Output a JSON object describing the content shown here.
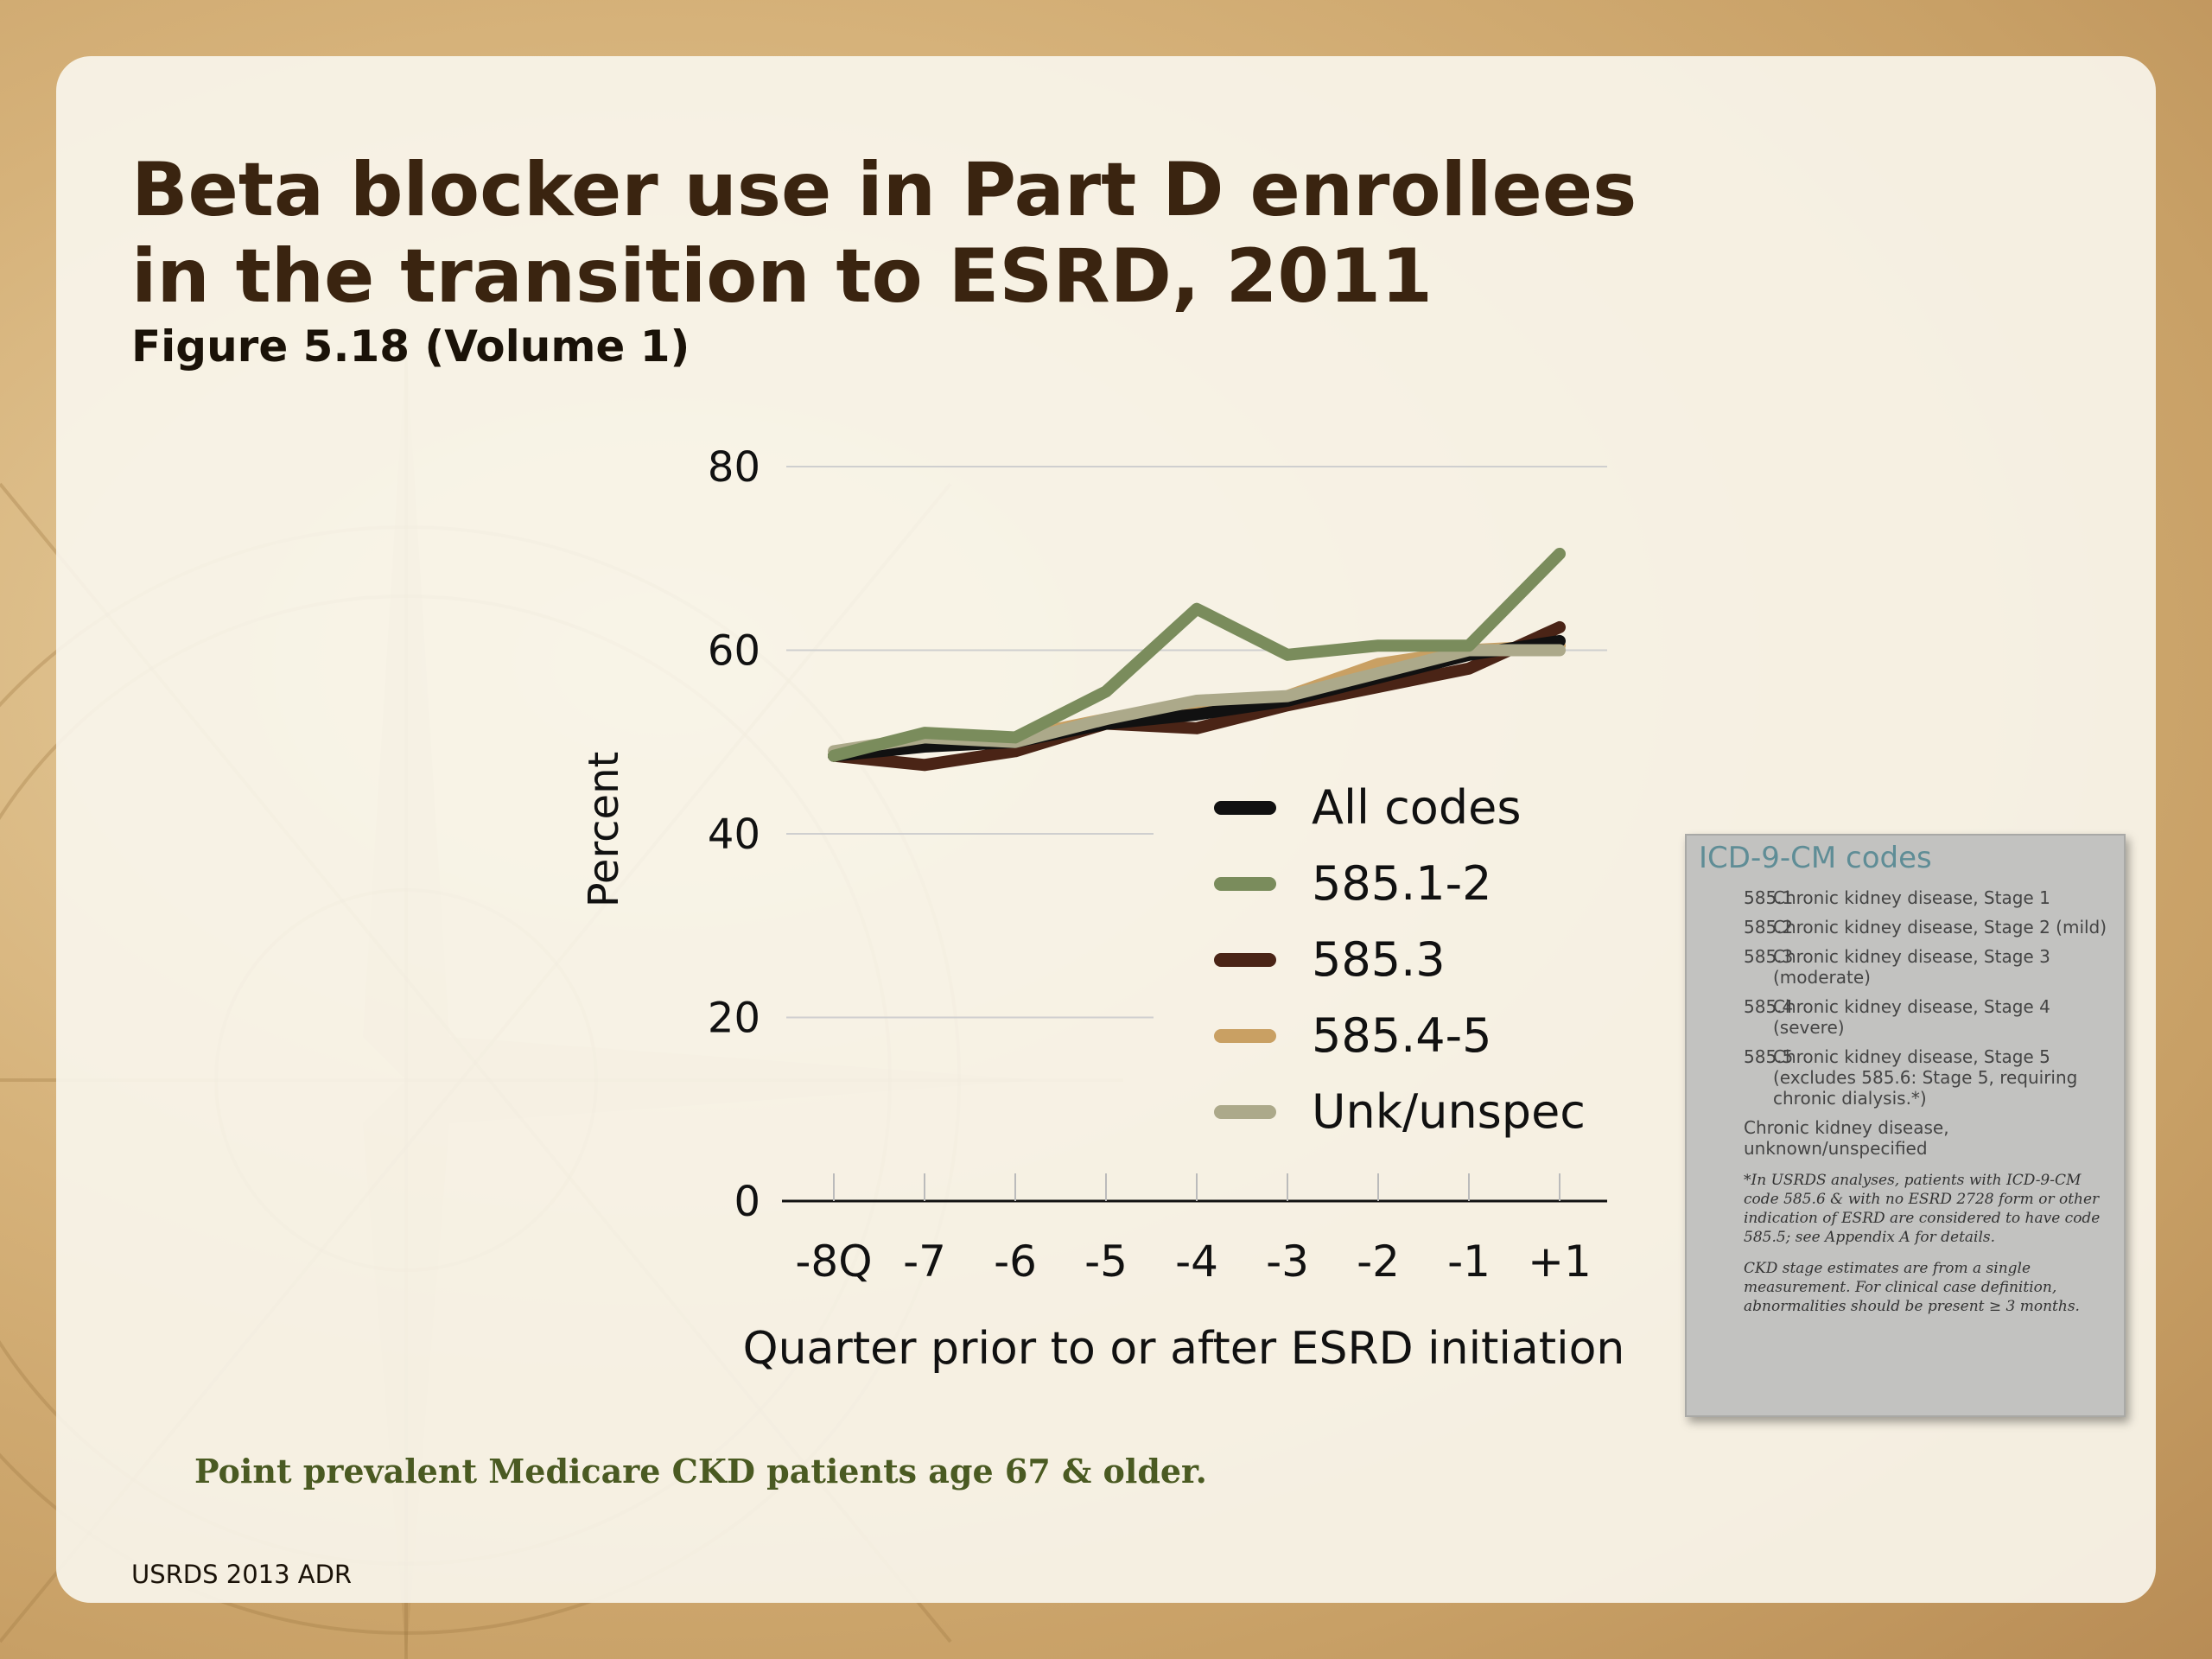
{
  "slide": {
    "title_line1": "Beta blocker use in Part D enrollees",
    "title_line2": "in the transition to ESRD, 2011",
    "subtitle": "Figure 5.18 (Volume 1)",
    "caption": "Point prevalent Medicare CKD patients age 67 & older.",
    "footer": "USRDS 2013 ADR"
  },
  "chart_data": {
    "type": "line",
    "title": "Beta blocker use in Part D enrollees in the transition to ESRD, 2011",
    "xlabel": "Quarter prior to or after ESRD initiation",
    "ylabel": "Percent",
    "categories": [
      "-8Q",
      "-7",
      "-6",
      "-5",
      "-4",
      "-3",
      "-2",
      "-1",
      "+1"
    ],
    "ylim": [
      0,
      80
    ],
    "yticks": [
      0,
      20,
      40,
      60,
      80
    ],
    "grid": true,
    "legend_position": "inside-bottom-right",
    "series": [
      {
        "name": "All codes",
        "color": "#111111",
        "values": [
          48.5,
          49.5,
          50,
          52,
          53,
          54.5,
          57,
          59.5,
          61
        ]
      },
      {
        "name": "585.1-2",
        "color": "#7a8c5c",
        "values": [
          48.5,
          51,
          50.5,
          55.5,
          64.5,
          59.5,
          60.5,
          60.5,
          70.5
        ]
      },
      {
        "name": "585.3",
        "color": "#4a2416",
        "values": [
          48.5,
          47.5,
          49,
          52,
          51.5,
          54,
          56,
          58,
          62.5
        ]
      },
      {
        "name": "585.4-5",
        "color": "#c9a063",
        "values": [
          48.5,
          50,
          50.5,
          52.5,
          53.5,
          55,
          58.5,
          60,
          60.5
        ]
      },
      {
        "name": "Unk/unspec",
        "color": "#aca98a",
        "values": [
          49,
          50.5,
          50,
          52.5,
          54.5,
          55,
          57.5,
          60,
          60
        ]
      }
    ]
  },
  "icd": {
    "title": "ICD-9-CM codes",
    "rows": [
      {
        "code": "585.1",
        "desc": "Chronic kidney disease, Stage 1"
      },
      {
        "code": "585.2",
        "desc": "Chronic kidney disease, Stage 2 (mild)"
      },
      {
        "code": "585.3",
        "desc": "Chronic kidney disease, Stage 3 (moderate)"
      },
      {
        "code": "585.4",
        "desc": "Chronic kidney disease, Stage 4 (severe)"
      },
      {
        "code": "585.5",
        "desc": "Chronic kidney disease, Stage 5 (excludes 585.6: Stage 5, requiring chronic dialysis.*)"
      }
    ],
    "unknown": "Chronic kidney disease, unknown/unspecified",
    "note1": "*In USRDS analyses, patients with ICD-9-CM code 585.6 & with no ESRD 2728 form or other indication of ESRD are considered to have code 585.5; see Appendix A for details.",
    "note2": "CKD stage estimates are from a single measurement. For clinical case definition, abnormalities should be present ≥ 3 months."
  }
}
